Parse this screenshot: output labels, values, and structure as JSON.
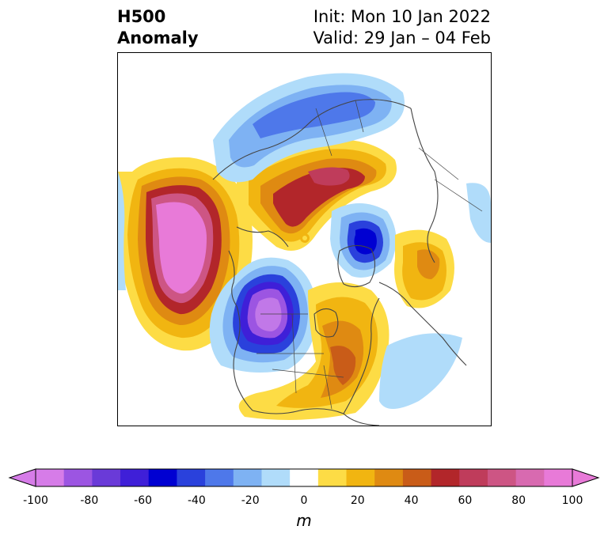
{
  "title": {
    "left_line1": "H500",
    "left_line2": "Anomaly",
    "right_line1": "Init: Mon 10 Jan 2022",
    "right_line2": "Valid: 29 Jan – 04 Feb"
  },
  "colorbar": {
    "unit_label": "m",
    "ticks": [
      "-100",
      "-80",
      "-60",
      "-40",
      "-20",
      "0",
      "20",
      "40",
      "60",
      "80",
      "100"
    ],
    "colors": [
      "#d67ce8",
      "#9c55e2",
      "#6a3ad8",
      "#3f1fd8",
      "#0000d2",
      "#2a41dc",
      "#4e78ea",
      "#7eb2f3",
      "#b0dcfa",
      "#ffffff",
      "#fddc45",
      "#f1b511",
      "#df8a12",
      "#c95c18",
      "#b2262a",
      "#bf3c5b",
      "#cd5584",
      "#d86ab0",
      "#e87ad8"
    ],
    "under_color": "#d67ce8",
    "over_color": "#e87ad8",
    "extend": "both"
  },
  "map": {
    "projection": "north polar stereographic",
    "field": "500 hPa geopotential height anomaly",
    "coastline_color": "#444444"
  }
}
